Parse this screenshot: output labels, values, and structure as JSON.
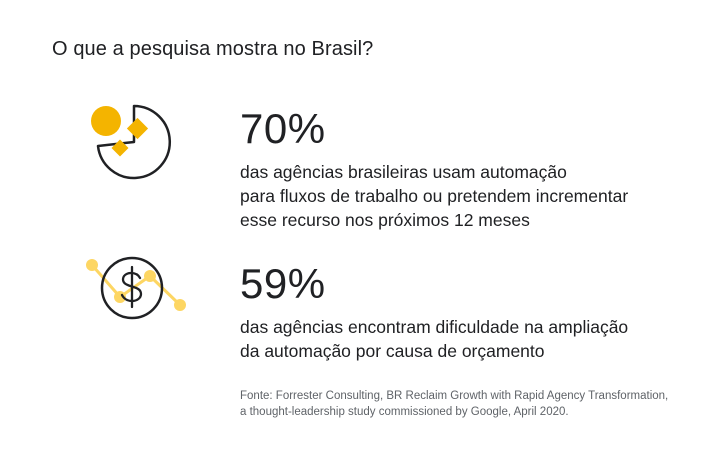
{
  "heading": "O que a pesquisa mostra no Brasil?",
  "stats": [
    {
      "value": "70%",
      "lines": [
        "das agências brasileiras usam automação",
        "para fluxos de trabalho ou pretendem incrementar",
        "esse recurso nos próximos 12 meses"
      ],
      "icon": "pie-shapes-icon"
    },
    {
      "value": "59%",
      "lines": [
        "das agências encontram dificuldade na ampliação",
        "da automação por causa de orçamento"
      ],
      "icon": "dollar-chart-icon"
    }
  ],
  "source": {
    "line1": "Fonte: Forrester Consulting, BR Reclaim Growth with Rapid Agency Transformation,",
    "line2": "a thought-leadership study commissioned by Google, April 2020."
  },
  "colors": {
    "accent_dark": "#f4b400",
    "accent_light": "#fdd663",
    "text": "#202124",
    "muted": "#5f6368"
  }
}
